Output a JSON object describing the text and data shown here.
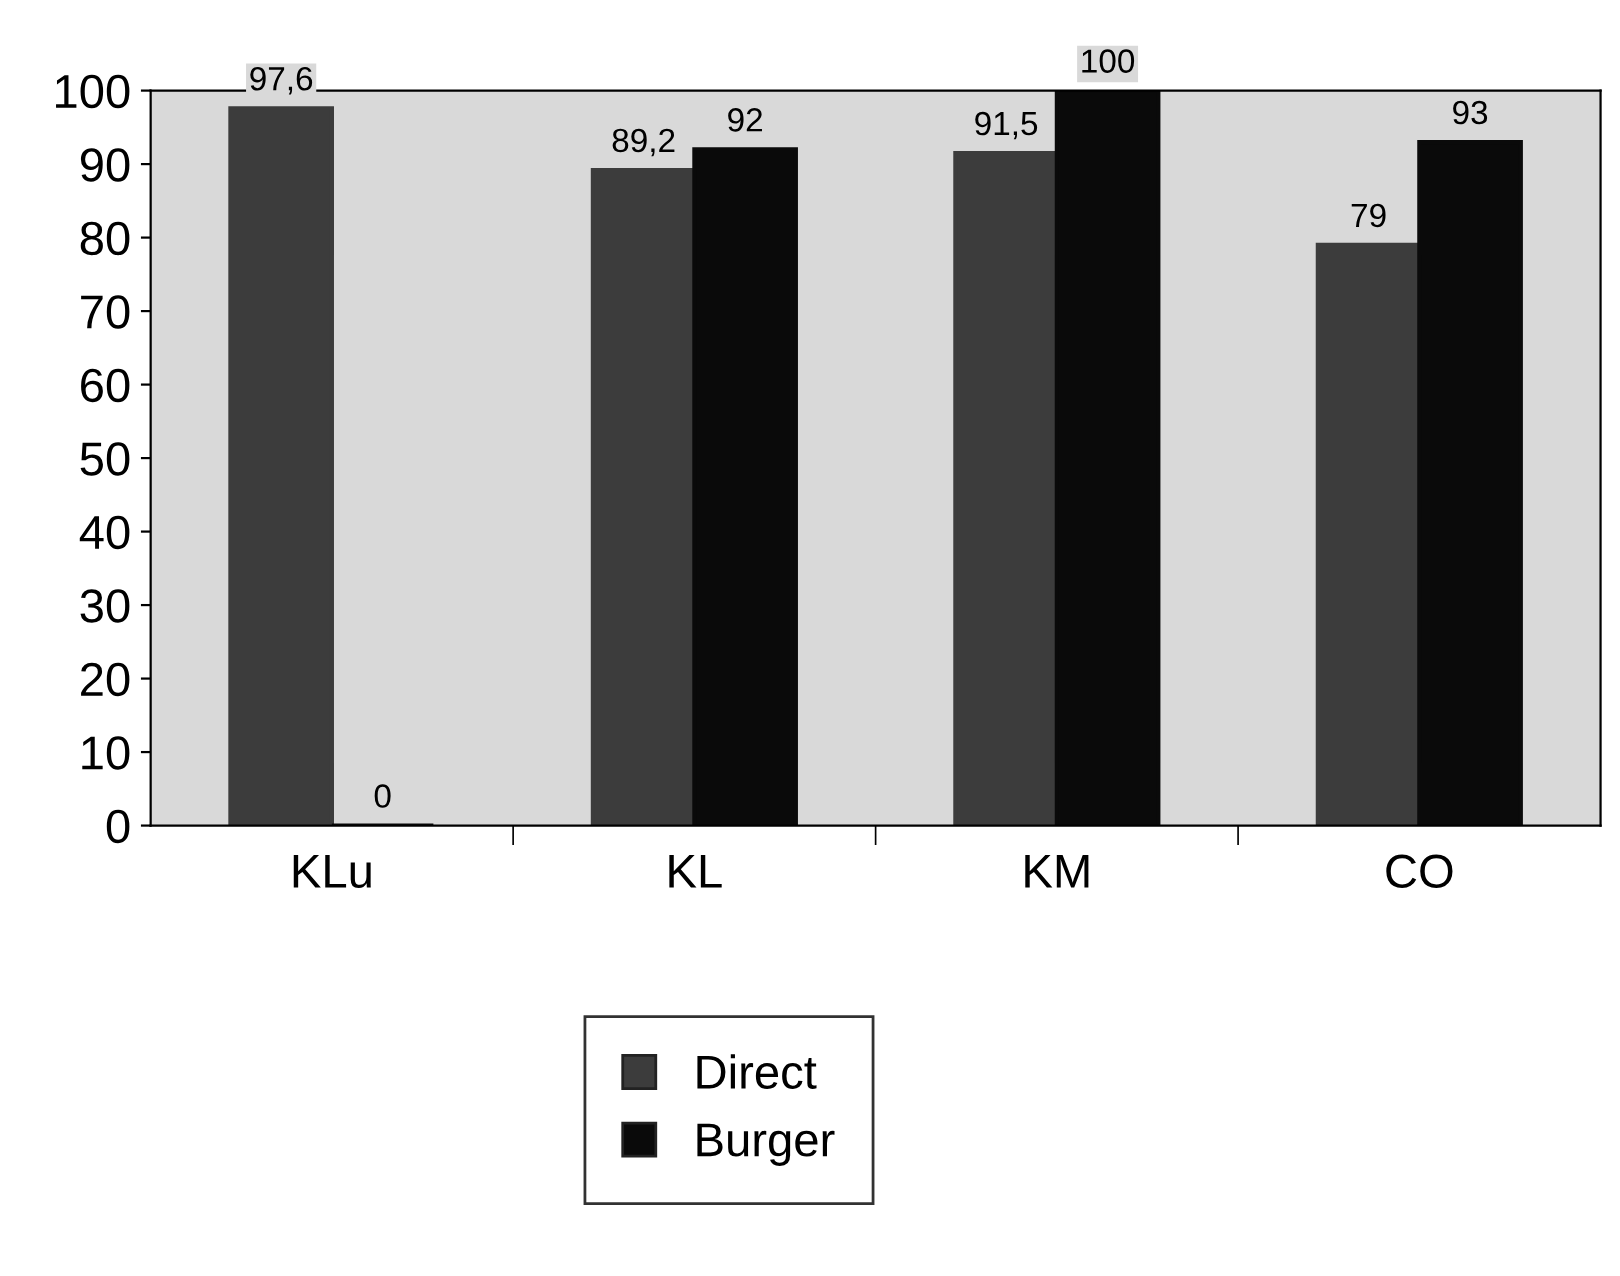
{
  "chart_data": {
    "type": "bar",
    "categories": [
      "KLu",
      "KL",
      "KM",
      "CO"
    ],
    "series": [
      {
        "name": "Direct",
        "color": "#3c3c3c",
        "values": [
          97.6,
          89.2,
          91.5,
          79
        ],
        "value_labels": [
          "97,6",
          "89,2",
          "91,5",
          "79"
        ]
      },
      {
        "name": "Burger",
        "color": "#0a0a0a",
        "values": [
          0,
          92,
          100,
          93
        ],
        "value_labels": [
          "0",
          "92",
          "100",
          "93"
        ]
      }
    ],
    "ylim": [
      0,
      100
    ],
    "yticks": [
      0,
      10,
      20,
      30,
      40,
      50,
      60,
      70,
      80,
      90,
      100
    ],
    "grid": false,
    "legend": "bottom"
  }
}
